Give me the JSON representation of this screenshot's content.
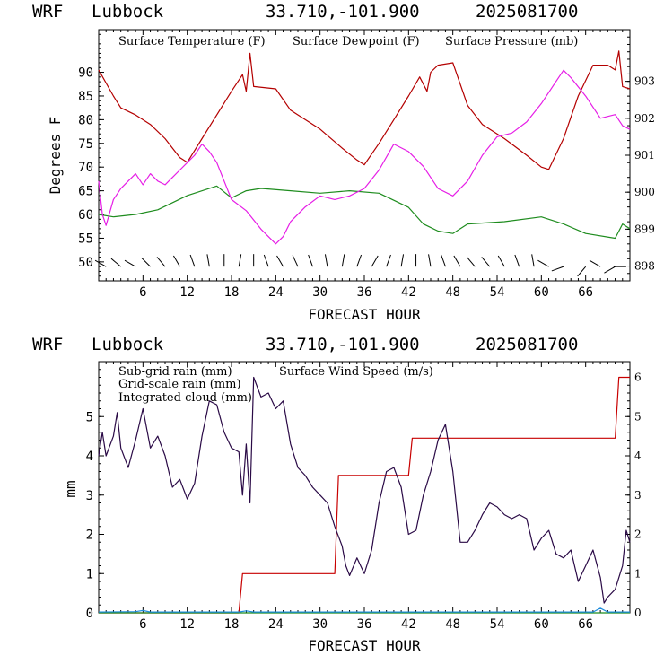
{
  "colors": {
    "temperature": "#b40000",
    "dewpoint": "#1e8c1e",
    "pressure": "#e61ee6",
    "subgrid_rain": "#c80000",
    "grid_rain": "#1e8c1e",
    "cloud": "#1e8cdc",
    "wind_speed": "#2a0a46",
    "axis": "#000000"
  },
  "panels": {
    "top": {
      "header": {
        "model": "WRF",
        "station": "Lubbock",
        "coords": "33.710,-101.900",
        "run": "2025081700"
      },
      "legend": {
        "temperature": "Surface Temperature (F)",
        "dewpoint": "Surface Dewpoint (F)",
        "pressure": "Surface Pressure (mb)"
      },
      "ylabel": "Degrees F",
      "xlabel": "FORECAST HOUR"
    },
    "bottom": {
      "header": {
        "model": "WRF",
        "station": "Lubbock",
        "coords": "33.710,-101.900",
        "run": "2025081700"
      },
      "legend": {
        "subgrid_rain": "Sub-grid rain (mm)",
        "wind_speed": "Surface Wind Speed (m/s)",
        "grid_rain": "Grid-scale rain (mm)",
        "cloud": "Integrated cloud (mm)"
      },
      "ylabel": "mm",
      "xlabel": "FORECAST HOUR"
    }
  },
  "chart_data": [
    {
      "type": "line",
      "xlim": [
        0,
        72
      ],
      "ylim": [
        46,
        99
      ],
      "y2lim": [
        897.6,
        904.4
      ],
      "x_ticks": [
        "6",
        "12",
        "18",
        "24",
        "30",
        "36",
        "42",
        "48",
        "54",
        "60",
        "66"
      ],
      "y_ticks": [
        "50",
        "55",
        "60",
        "65",
        "70",
        "75",
        "80",
        "85",
        "90"
      ],
      "y2_ticks": [
        "898",
        "899",
        "900",
        "901",
        "902",
        "903"
      ],
      "series": [
        {
          "name": "Surface Temperature (F)",
          "axis": "left",
          "color_key": "temperature",
          "points": [
            [
              0,
              90.5
            ],
            [
              2,
              85
            ],
            [
              3,
              82.5
            ],
            [
              5,
              81
            ],
            [
              7,
              79
            ],
            [
              9,
              76
            ],
            [
              11,
              72
            ],
            [
              12,
              71
            ],
            [
              14,
              76
            ],
            [
              16,
              81
            ],
            [
              18,
              86
            ],
            [
              19.5,
              89.5
            ],
            [
              20,
              86
            ],
            [
              20.5,
              94
            ],
            [
              21,
              87
            ],
            [
              24,
              86.5
            ],
            [
              26,
              82
            ],
            [
              30,
              78
            ],
            [
              33,
              74
            ],
            [
              35,
              71.5
            ],
            [
              36,
              70.5
            ],
            [
              38,
              75
            ],
            [
              40,
              80
            ],
            [
              42,
              85
            ],
            [
              43.5,
              89
            ],
            [
              44.5,
              86
            ],
            [
              45,
              90
            ],
            [
              46,
              91.5
            ],
            [
              48,
              92
            ],
            [
              50,
              83
            ],
            [
              52,
              79
            ],
            [
              55,
              76
            ],
            [
              58,
              72.5
            ],
            [
              60,
              70
            ],
            [
              61,
              69.5
            ],
            [
              63,
              76
            ],
            [
              65,
              85
            ],
            [
              67,
              91.5
            ],
            [
              69,
              91.5
            ],
            [
              70,
              90.5
            ],
            [
              70.5,
              94.5
            ],
            [
              71,
              87
            ],
            [
              72,
              86.5
            ]
          ]
        },
        {
          "name": "Surface Dewpoint (F)",
          "axis": "left",
          "color_key": "dewpoint",
          "points": [
            [
              0,
              60
            ],
            [
              2,
              59.5
            ],
            [
              5,
              60
            ],
            [
              8,
              61
            ],
            [
              12,
              64
            ],
            [
              16,
              66
            ],
            [
              18,
              63.5
            ],
            [
              20,
              65
            ],
            [
              22,
              65.5
            ],
            [
              26,
              65
            ],
            [
              30,
              64.5
            ],
            [
              34,
              65
            ],
            [
              38,
              64.5
            ],
            [
              42,
              61.5
            ],
            [
              44,
              58
            ],
            [
              46,
              56.5
            ],
            [
              48,
              56
            ],
            [
              50,
              58
            ],
            [
              55,
              58.5
            ],
            [
              60,
              59.5
            ],
            [
              63,
              58
            ],
            [
              66,
              56
            ],
            [
              70,
              55
            ],
            [
              71,
              58
            ],
            [
              72,
              57
            ]
          ]
        },
        {
          "name": "Surface Pressure (mb)",
          "axis": "right",
          "color_key": "pressure",
          "points": [
            [
              0,
              900.3
            ],
            [
              0.5,
              899.4
            ],
            [
              1,
              899.1
            ],
            [
              2,
              899.8
            ],
            [
              3,
              900.1
            ],
            [
              4,
              900.3
            ],
            [
              5,
              900.5
            ],
            [
              6,
              900.2
            ],
            [
              7,
              900.5
            ],
            [
              8,
              900.3
            ],
            [
              9,
              900.2
            ],
            [
              10,
              900.4
            ],
            [
              11,
              900.6
            ],
            [
              12,
              900.8
            ],
            [
              13,
              901
            ],
            [
              14,
              901.3
            ],
            [
              15,
              901.1
            ],
            [
              16,
              900.8
            ],
            [
              17,
              900.3
            ],
            [
              18,
              899.8
            ],
            [
              20,
              899.5
            ],
            [
              22,
              899
            ],
            [
              24,
              898.6
            ],
            [
              25,
              898.8
            ],
            [
              26,
              899.2
            ],
            [
              28,
              899.6
            ],
            [
              30,
              899.9
            ],
            [
              32,
              899.8
            ],
            [
              34,
              899.9
            ],
            [
              36,
              900.1
            ],
            [
              38,
              900.6
            ],
            [
              40,
              901.3
            ],
            [
              42,
              901.1
            ],
            [
              44,
              900.7
            ],
            [
              46,
              900.1
            ],
            [
              48,
              899.9
            ],
            [
              50,
              900.3
            ],
            [
              52,
              901
            ],
            [
              54,
              901.5
            ],
            [
              56,
              901.6
            ],
            [
              58,
              901.9
            ],
            [
              60,
              902.4
            ],
            [
              62,
              903
            ],
            [
              63,
              903.3
            ],
            [
              64,
              903.1
            ],
            [
              66,
              902.6
            ],
            [
              68,
              902
            ],
            [
              70,
              902.1
            ],
            [
              71,
              901.8
            ],
            [
              72,
              901.7
            ]
          ]
        }
      ]
    },
    {
      "type": "line",
      "xlim": [
        0,
        72
      ],
      "ylim": [
        0,
        6.4
      ],
      "y2lim": [
        0,
        6.4
      ],
      "x_ticks": [
        "6",
        "12",
        "18",
        "24",
        "30",
        "36",
        "42",
        "48",
        "54",
        "60",
        "66"
      ],
      "y_ticks": [
        "0",
        "1",
        "2",
        "3",
        "4",
        "5"
      ],
      "y2_ticks": [
        "0",
        "1",
        "2",
        "3",
        "4",
        "5",
        "6"
      ],
      "series": [
        {
          "name": "Sub-grid rain (mm)",
          "axis": "left",
          "color_key": "subgrid_rain",
          "points": [
            [
              0,
              0
            ],
            [
              19,
              0
            ],
            [
              19.5,
              1
            ],
            [
              32,
              1
            ],
            [
              32.5,
              3.5
            ],
            [
              42,
              3.5
            ],
            [
              42.5,
              4.45
            ],
            [
              70,
              4.45
            ],
            [
              70.5,
              6
            ],
            [
              72,
              6
            ]
          ]
        },
        {
          "name": "Grid-scale rain (mm)",
          "axis": "left",
          "color_key": "grid_rain",
          "points": [
            [
              0,
              0
            ],
            [
              72,
              0
            ]
          ]
        },
        {
          "name": "Integrated cloud (mm)",
          "axis": "left",
          "color_key": "cloud",
          "points": [
            [
              0,
              0.02
            ],
            [
              5,
              0.03
            ],
            [
              6,
              0.06
            ],
            [
              7,
              0.02
            ],
            [
              19,
              0.02
            ],
            [
              20,
              0.05
            ],
            [
              21,
              0.02
            ],
            [
              67,
              0.02
            ],
            [
              68,
              0.12
            ],
            [
              69,
              0.02
            ],
            [
              72,
              0.02
            ]
          ]
        },
        {
          "name": "Surface Wind Speed (m/s)",
          "axis": "right",
          "color_key": "wind_speed",
          "points": [
            [
              0,
              4
            ],
            [
              0.5,
              4.6
            ],
            [
              1,
              4
            ],
            [
              2,
              4.5
            ],
            [
              2.5,
              5.1
            ],
            [
              3,
              4.2
            ],
            [
              4,
              3.7
            ],
            [
              5,
              4.4
            ],
            [
              6,
              5.2
            ],
            [
              7,
              4.2
            ],
            [
              8,
              4.5
            ],
            [
              9,
              4
            ],
            [
              10,
              3.2
            ],
            [
              11,
              3.4
            ],
            [
              12,
              2.9
            ],
            [
              13,
              3.3
            ],
            [
              14,
              4.5
            ],
            [
              15,
              5.4
            ],
            [
              16,
              5.3
            ],
            [
              17,
              4.6
            ],
            [
              18,
              4.2
            ],
            [
              19,
              4.1
            ],
            [
              19.5,
              3
            ],
            [
              20,
              4.3
            ],
            [
              20.5,
              2.8
            ],
            [
              21,
              6
            ],
            [
              22,
              5.5
            ],
            [
              23,
              5.6
            ],
            [
              24,
              5.2
            ],
            [
              25,
              5.4
            ],
            [
              26,
              4.3
            ],
            [
              27,
              3.7
            ],
            [
              28,
              3.5
            ],
            [
              29,
              3.2
            ],
            [
              30,
              3
            ],
            [
              31,
              2.8
            ],
            [
              32,
              2.2
            ],
            [
              33,
              1.7
            ],
            [
              33.5,
              1.2
            ],
            [
              34,
              0.95
            ],
            [
              35,
              1.4
            ],
            [
              36,
              1.0
            ],
            [
              37,
              1.6
            ],
            [
              38,
              2.8
            ],
            [
              39,
              3.6
            ],
            [
              40,
              3.7
            ],
            [
              41,
              3.2
            ],
            [
              42,
              2.0
            ],
            [
              43,
              2.1
            ],
            [
              44,
              3.0
            ],
            [
              45,
              3.6
            ],
            [
              46,
              4.4
            ],
            [
              47,
              4.8
            ],
            [
              48,
              3.6
            ],
            [
              49,
              1.8
            ],
            [
              50,
              1.8
            ],
            [
              51,
              2.1
            ],
            [
              52,
              2.5
            ],
            [
              53,
              2.8
            ],
            [
              54,
              2.7
            ],
            [
              55,
              2.5
            ],
            [
              56,
              2.4
            ],
            [
              57,
              2.5
            ],
            [
              58,
              2.4
            ],
            [
              59,
              1.6
            ],
            [
              60,
              1.9
            ],
            [
              61,
              2.1
            ],
            [
              62,
              1.5
            ],
            [
              63,
              1.4
            ],
            [
              64,
              1.6
            ],
            [
              65,
              0.8
            ],
            [
              66,
              1.2
            ],
            [
              67,
              1.6
            ],
            [
              68,
              0.9
            ],
            [
              68.5,
              0.25
            ],
            [
              69,
              0.4
            ],
            [
              70,
              0.6
            ],
            [
              71,
              1.2
            ],
            [
              71.5,
              2.1
            ],
            [
              72,
              1.8
            ]
          ]
        }
      ]
    }
  ],
  "wind_barbs": [
    {
      "hour": 1,
      "dir": 300
    },
    {
      "hour": 3,
      "dir": 310
    },
    {
      "hour": 5,
      "dir": 300
    },
    {
      "hour": 7,
      "dir": 315
    },
    {
      "hour": 9,
      "dir": 320
    },
    {
      "hour": 11,
      "dir": 330
    },
    {
      "hour": 13,
      "dir": 340
    },
    {
      "hour": 15,
      "dir": 350
    },
    {
      "hour": 17,
      "dir": 0
    },
    {
      "hour": 19,
      "dir": 10
    },
    {
      "hour": 21,
      "dir": 0
    },
    {
      "hour": 23,
      "dir": 340
    },
    {
      "hour": 25,
      "dir": 330
    },
    {
      "hour": 27,
      "dir": 335
    },
    {
      "hour": 29,
      "dir": 340
    },
    {
      "hour": 31,
      "dir": 350
    },
    {
      "hour": 33,
      "dir": 10
    },
    {
      "hour": 35,
      "dir": 20
    },
    {
      "hour": 37,
      "dir": 30
    },
    {
      "hour": 39,
      "dir": 20
    },
    {
      "hour": 41,
      "dir": 10
    },
    {
      "hour": 43,
      "dir": 0
    },
    {
      "hour": 45,
      "dir": 350
    },
    {
      "hour": 47,
      "dir": 340
    },
    {
      "hour": 49,
      "dir": 330
    },
    {
      "hour": 51,
      "dir": 320
    },
    {
      "hour": 53,
      "dir": 320
    },
    {
      "hour": 55,
      "dir": 330
    },
    {
      "hour": 57,
      "dir": 340
    },
    {
      "hour": 59,
      "dir": 350
    },
    {
      "hour": 61,
      "dir": 300
    },
    {
      "hour": 63,
      "dir": 250
    },
    {
      "hour": 66,
      "dir": 220
    },
    {
      "hour": 68,
      "dir": 300
    },
    {
      "hour": 70,
      "dir": 240
    },
    {
      "hour": 71.5,
      "dir": 270
    }
  ]
}
